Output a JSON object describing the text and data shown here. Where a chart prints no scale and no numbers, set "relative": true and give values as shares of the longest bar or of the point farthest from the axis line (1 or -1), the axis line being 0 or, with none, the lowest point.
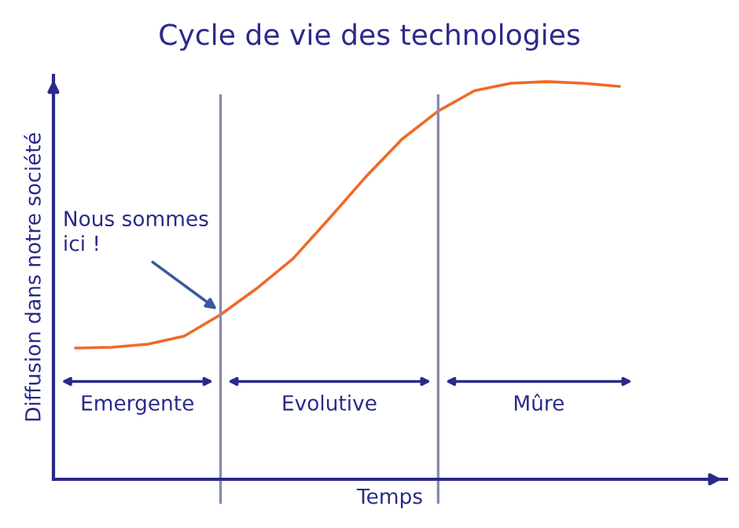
{
  "chart_data": {
    "type": "line",
    "title": "Cycle de vie des technologies",
    "xlabel": "Temps",
    "ylabel": "Diffusion dans notre société",
    "relative": true,
    "marker": "none",
    "line_style": "solid",
    "categories": [
      null,
      null,
      null,
      null,
      null,
      null,
      null,
      null,
      null,
      null,
      null,
      null,
      null,
      null,
      null,
      null
    ],
    "series": [
      {
        "color": "#ee6a2a",
        "values": [
          0.33,
          0.332,
          0.34,
          0.36,
          0.414,
          0.48,
          0.555,
          0.656,
          0.76,
          0.855,
          0.926,
          0.977,
          0.996,
          1,
          0.996,
          0.988
        ]
      }
    ],
    "annotations": [
      "Nous sommes\nici !",
      "Emergente",
      "Evolutive",
      "Mûre"
    ]
  }
}
